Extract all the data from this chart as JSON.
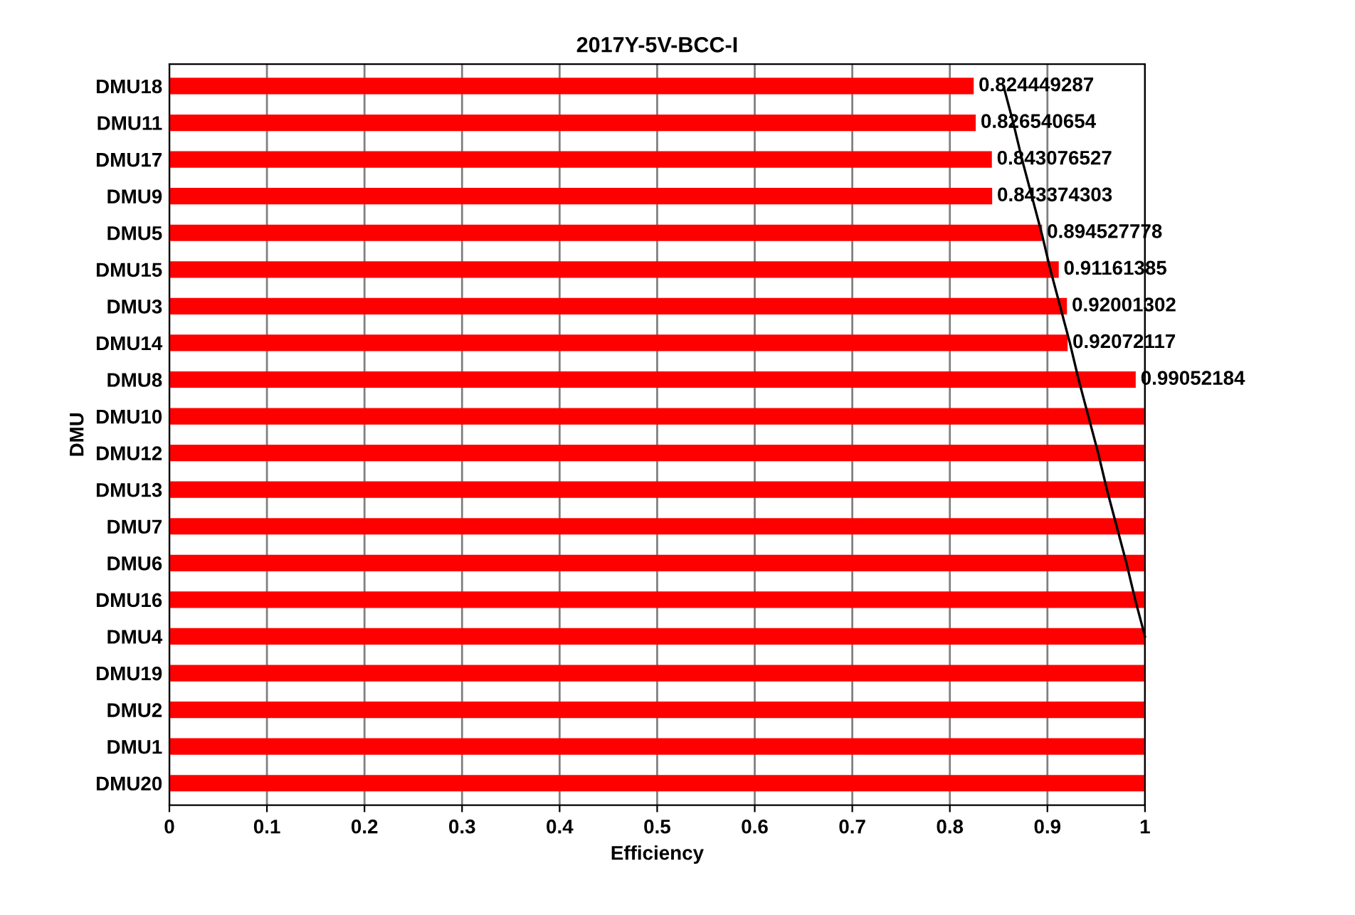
{
  "chart_data": {
    "type": "bar",
    "orientation": "horizontal",
    "title": "2017Y-5V-BCC-I",
    "xlabel": "Efficiency",
    "ylabel": "DMU",
    "categories": [
      "DMU18",
      "DMU11",
      "DMU17",
      "DMU9",
      "DMU5",
      "DMU15",
      "DMU3",
      "DMU14",
      "DMU8",
      "DMU10",
      "DMU12",
      "DMU13",
      "DMU7",
      "DMU6",
      "DMU16",
      "DMU4",
      "DMU19",
      "DMU2",
      "DMU1",
      "DMU20"
    ],
    "series": [
      {
        "color": "#ff0000",
        "values": [
          0.824449287,
          0.826540654,
          0.843076527,
          0.843374303,
          0.894527778,
          0.91161385,
          0.92001302,
          0.92072117,
          0.99052184,
          1,
          1,
          1,
          1,
          1,
          1,
          1,
          1,
          1,
          1,
          1
        ],
        "value_labels": [
          "0.824449287",
          "0.826540654",
          "0.843076527",
          "0.843374303",
          "0.894527778",
          "0.91161385",
          "0.92001302",
          "0.92072117",
          "0.99052184",
          null,
          null,
          null,
          null,
          null,
          null,
          null,
          null,
          null,
          null,
          null
        ]
      },
      {
        "type": "line",
        "color": "#000000",
        "values": [
          0.855,
          0.865,
          0.874,
          0.884,
          0.894,
          0.903,
          0.913,
          0.923,
          0.932,
          0.942,
          0.952,
          0.961,
          0.971,
          0.981,
          0.99,
          1.0,
          null,
          null,
          null,
          null
        ]
      }
    ],
    "xlim": [
      0,
      1
    ],
    "xticks": [
      0,
      0.1,
      0.2,
      0.3,
      0.4,
      0.5,
      0.6,
      0.7,
      0.8,
      0.9,
      1
    ],
    "grid": "x"
  }
}
